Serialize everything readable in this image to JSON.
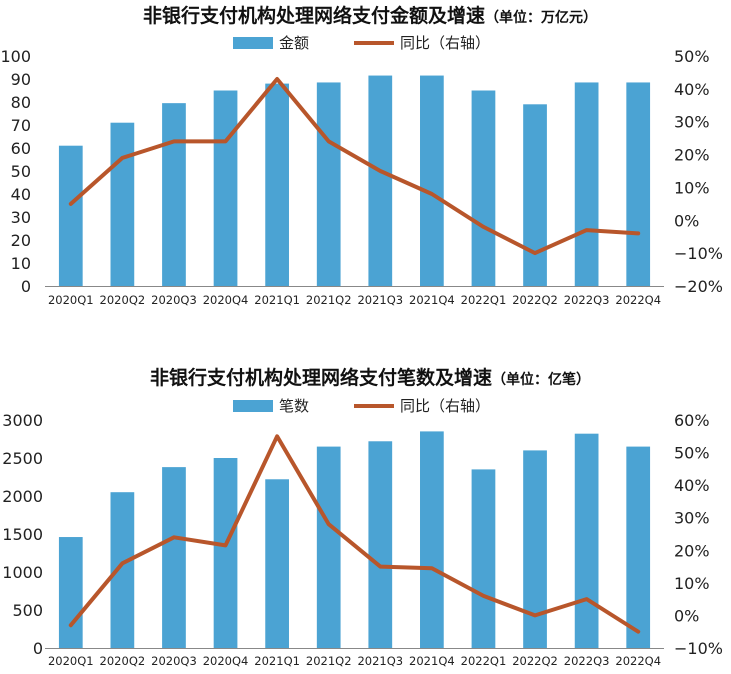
{
  "chart_data": [
    {
      "type": "bar",
      "title": "非银行支付机构处理网络支付金额及增速",
      "unit_note": "（单位：万亿元）",
      "categories": [
        "2020Q1",
        "2020Q2",
        "2020Q3",
        "2020Q4",
        "2021Q1",
        "2021Q2",
        "2021Q3",
        "2021Q4",
        "2022Q1",
        "2022Q2",
        "2022Q3",
        "2022Q4"
      ],
      "series": [
        {
          "name": "金额",
          "type": "bar",
          "axis": "left",
          "color": "#4ba3d3",
          "values": [
            61,
            71,
            79.5,
            85,
            88,
            88.5,
            91.5,
            91.5,
            85,
            79,
            88.5,
            88.5
          ]
        },
        {
          "name": "同比（右轴）",
          "type": "line",
          "axis": "right",
          "color": "#b8562b",
          "values": [
            5,
            19,
            24,
            24,
            43,
            24,
            15,
            8,
            -2,
            -10,
            -3,
            -4
          ]
        }
      ],
      "left_axis": {
        "min": 0,
        "max": 100,
        "step": 10,
        "tick_labels": [
          "0",
          "10",
          "20",
          "30",
          "40",
          "50",
          "60",
          "70",
          "80",
          "90",
          "100"
        ]
      },
      "right_axis": {
        "min": -20,
        "max": 50,
        "step": 10,
        "tick_labels": [
          "−20%",
          "−10%",
          "0%",
          "10%",
          "20%",
          "30%",
          "40%",
          "50%"
        ]
      },
      "legend_position": "top-center",
      "grid": false
    },
    {
      "type": "bar",
      "title": "非银行支付机构处理网络支付笔数及增速",
      "unit_note": "（单位：亿笔）",
      "categories": [
        "2020Q1",
        "2020Q2",
        "2020Q3",
        "2020Q4",
        "2021Q1",
        "2021Q2",
        "2021Q3",
        "2021Q4",
        "2022Q1",
        "2022Q2",
        "2022Q3",
        "2022Q4"
      ],
      "series": [
        {
          "name": "笔数",
          "type": "bar",
          "axis": "left",
          "color": "#4ba3d3",
          "values": [
            1460,
            2050,
            2380,
            2500,
            2220,
            2650,
            2720,
            2850,
            2350,
            2600,
            2820,
            2650
          ]
        },
        {
          "name": "同比（右轴）",
          "type": "line",
          "axis": "right",
          "color": "#b8562b",
          "values": [
            -3,
            16,
            24,
            21.5,
            55,
            28,
            15,
            14.5,
            6,
            0,
            5,
            -5
          ]
        }
      ],
      "left_axis": {
        "min": 0,
        "max": 3000,
        "step": 500,
        "tick_labels": [
          "0",
          "500",
          "1000",
          "1500",
          "2000",
          "2500",
          "3000"
        ]
      },
      "right_axis": {
        "min": -10,
        "max": 60,
        "step": 10,
        "tick_labels": [
          "−10%",
          "0%",
          "10%",
          "20%",
          "30%",
          "40%",
          "50%",
          "60%"
        ]
      },
      "legend_position": "top-center",
      "grid": false
    }
  ]
}
